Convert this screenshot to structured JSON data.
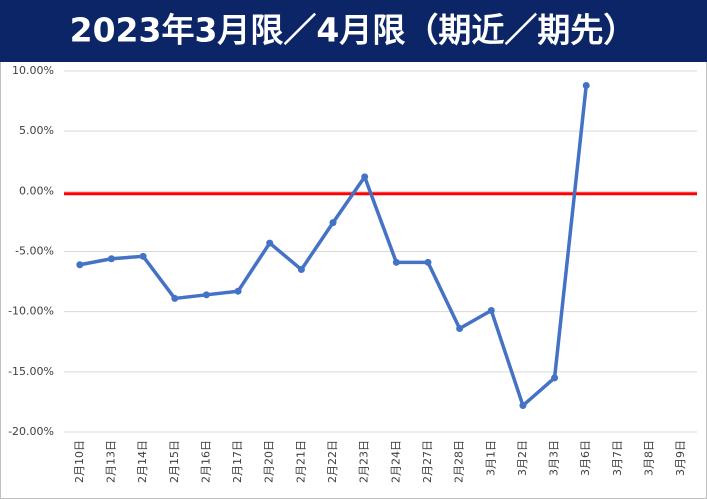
{
  "chart_data": {
    "type": "line",
    "title": "2023年3月限／4月限（期近／期先）",
    "categories": [
      "2月10日",
      "2月13日",
      "2月14日",
      "2月15日",
      "2月16日",
      "2月17日",
      "2月20日",
      "2月21日",
      "2月22日",
      "2月23日",
      "2月24日",
      "2月27日",
      "2月28日",
      "3月1日",
      "3月2日",
      "3月3日",
      "3月6日",
      "3月7日",
      "3月8日",
      "3月9日"
    ],
    "series": [
      {
        "color": "#4472c4",
        "values": [
          -6.1,
          -5.6,
          -5.4,
          -8.9,
          -8.6,
          -8.3,
          -4.3,
          -6.5,
          -2.6,
          1.2,
          -5.9,
          -5.9,
          -11.4,
          -9.9,
          -17.8,
          -15.5,
          8.8,
          null,
          null,
          null
        ]
      }
    ],
    "reference_line": {
      "value": -0.2,
      "color": "#ff0000"
    },
    "ylim": [
      -20,
      10
    ],
    "yticks": [
      {
        "value": -20,
        "label": "-20.00%"
      },
      {
        "value": -15,
        "label": "-15.00%"
      },
      {
        "value": -10,
        "label": "-10.00%"
      },
      {
        "value": -5,
        "label": "-5.00%"
      },
      {
        "value": 0,
        "label": "0.00%"
      },
      {
        "value": 5,
        "label": "5.00%"
      },
      {
        "value": 10,
        "label": "10.00%"
      }
    ],
    "grid": true
  }
}
